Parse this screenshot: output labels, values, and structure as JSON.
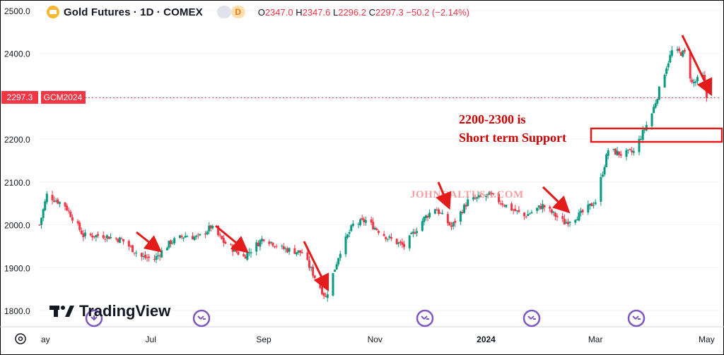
{
  "header": {
    "title": "Gold Futures · 1D · COMEX",
    "badge": "D",
    "open": "2347.0",
    "high": "2347.6",
    "low": "2296.2",
    "close": "2297.3",
    "change": "−50.2 (−2.14%)"
  },
  "price_tag": {
    "price": "2297.3",
    "symbol": "GCM2024"
  },
  "annotation": {
    "line1": "2200-2300 is",
    "line2": "Short term Support"
  },
  "watermark": "JOHNGALTUSA.COM",
  "logo_text": "TradingView",
  "colors": {
    "up": "#089981",
    "down": "#f23645",
    "arrow": "#e31b1b",
    "annotation": "#cc0000"
  },
  "chart_data": {
    "type": "candlestick",
    "title": "Gold Futures · 1D · COMEX",
    "y_ticks": [
      1800,
      1900,
      2000,
      2100,
      2200,
      2300,
      2400,
      2500
    ],
    "y_tick_labels": [
      "1800.0",
      "1900.0",
      "2000.0",
      "2100.0",
      "2200.0",
      "2300.0",
      "2400.0",
      "2500.0"
    ],
    "ylim": [
      1780,
      2510
    ],
    "x_labels": [
      "ay",
      "Jul",
      "Sep",
      "Nov",
      "2024",
      "Mar",
      "May"
    ],
    "x_label_dates": [
      "2023-05-01",
      "2023-07-01",
      "2023-09-01",
      "2023-11-01",
      "2024-01-01",
      "2024-03-01",
      "2024-05-01"
    ],
    "xlim": [
      "2023-05-01",
      "2024-05-09"
    ],
    "last_price": 2297.3,
    "support_zone": [
      2200,
      2230
    ],
    "approx_close_path": [
      {
        "date": "2023-05-01",
        "close": 2000
      },
      {
        "date": "2023-05-05",
        "close": 2070
      },
      {
        "date": "2023-05-15",
        "close": 2045
      },
      {
        "date": "2023-05-25",
        "close": 1975
      },
      {
        "date": "2023-06-05",
        "close": 1975
      },
      {
        "date": "2023-06-15",
        "close": 1965
      },
      {
        "date": "2023-06-26",
        "close": 1925
      },
      {
        "date": "2023-07-03",
        "close": 1920
      },
      {
        "date": "2023-07-12",
        "close": 1960
      },
      {
        "date": "2023-07-20",
        "close": 1975
      },
      {
        "date": "2023-07-27",
        "close": 1970
      },
      {
        "date": "2023-08-03",
        "close": 1995
      },
      {
        "date": "2023-08-10",
        "close": 1960
      },
      {
        "date": "2023-08-21",
        "close": 1925
      },
      {
        "date": "2023-09-01",
        "close": 1970
      },
      {
        "date": "2023-09-11",
        "close": 1945
      },
      {
        "date": "2023-09-22",
        "close": 1935
      },
      {
        "date": "2023-10-05",
        "close": 1830
      },
      {
        "date": "2023-10-13",
        "close": 1940
      },
      {
        "date": "2023-10-20",
        "close": 2000
      },
      {
        "date": "2023-10-27",
        "close": 2010
      },
      {
        "date": "2023-11-08",
        "close": 1970
      },
      {
        "date": "2023-11-17",
        "close": 1950
      },
      {
        "date": "2023-11-28",
        "close": 2015
      },
      {
        "date": "2023-12-04",
        "close": 2040
      },
      {
        "date": "2023-12-13",
        "close": 1995
      },
      {
        "date": "2023-12-22",
        "close": 2055
      },
      {
        "date": "2024-01-03",
        "close": 2070
      },
      {
        "date": "2024-01-12",
        "close": 2045
      },
      {
        "date": "2024-01-22",
        "close": 2020
      },
      {
        "date": "2024-02-01",
        "close": 2045
      },
      {
        "date": "2024-02-13",
        "close": 2005
      },
      {
        "date": "2024-02-22",
        "close": 2025
      },
      {
        "date": "2024-03-01",
        "close": 2055
      },
      {
        "date": "2024-03-08",
        "close": 2175
      },
      {
        "date": "2024-03-15",
        "close": 2165
      },
      {
        "date": "2024-03-22",
        "close": 2170
      },
      {
        "date": "2024-04-01",
        "close": 2260
      },
      {
        "date": "2024-04-09",
        "close": 2370
      },
      {
        "date": "2024-04-12",
        "close": 2405
      },
      {
        "date": "2024-04-19",
        "close": 2400
      },
      {
        "date": "2024-04-23",
        "close": 2330
      },
      {
        "date": "2024-04-29",
        "close": 2345
      },
      {
        "date": "2024-05-01",
        "close": 2297
      }
    ]
  }
}
